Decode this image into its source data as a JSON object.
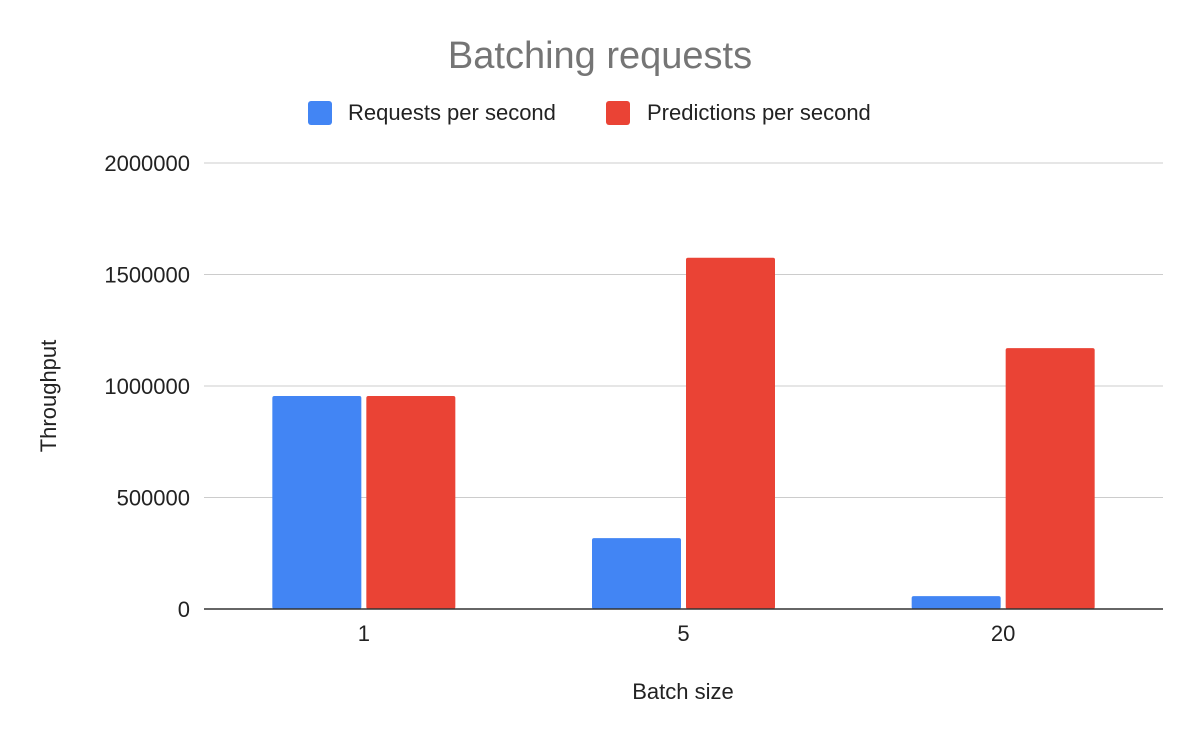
{
  "chart_data": {
    "type": "bar",
    "title": "Batching requests",
    "xlabel": "Batch size",
    "ylabel": "Throughput",
    "categories": [
      "1",
      "5",
      "20"
    ],
    "series": [
      {
        "name": "Requests per second",
        "values": [
          955000,
          318000,
          58000
        ],
        "color": "#4285f4"
      },
      {
        "name": "Predictions per second",
        "values": [
          955000,
          1575000,
          1170000
        ],
        "color": "#ea4335"
      }
    ],
    "ylim": [
      0,
      2000000
    ],
    "yticks": [
      "0",
      "500000",
      "1000000",
      "1500000",
      "2000000"
    ],
    "grid": true,
    "legend": "top-center"
  }
}
